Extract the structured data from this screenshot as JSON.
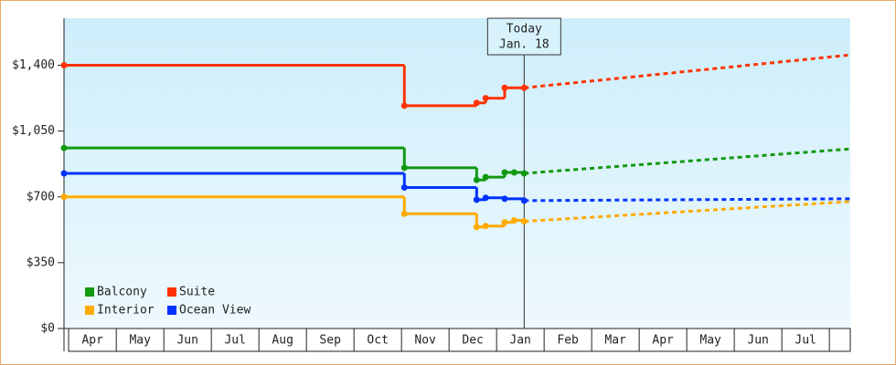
{
  "chart_data": {
    "type": "step-line",
    "ylim": [
      0,
      1650
    ],
    "yticks": [
      {
        "value": 0,
        "label": "$0"
      },
      {
        "value": 350,
        "label": "$350"
      },
      {
        "value": 700,
        "label": "$700"
      },
      {
        "value": 1050,
        "label": "$1,050"
      },
      {
        "value": 1400,
        "label": "$1,400"
      }
    ],
    "xlim": [
      -0.1,
      16.44
    ],
    "xticks": [
      {
        "value": 0.5,
        "label": "Apr"
      },
      {
        "value": 1.5,
        "label": "May"
      },
      {
        "value": 2.5,
        "label": "Jun"
      },
      {
        "value": 3.5,
        "label": "Jul"
      },
      {
        "value": 4.5,
        "label": "Aug"
      },
      {
        "value": 5.5,
        "label": "Sep"
      },
      {
        "value": 6.5,
        "label": "Oct"
      },
      {
        "value": 7.5,
        "label": "Nov"
      },
      {
        "value": 8.5,
        "label": "Dec"
      },
      {
        "value": 9.5,
        "label": "Jan"
      },
      {
        "value": 10.5,
        "label": "Feb"
      },
      {
        "value": 11.5,
        "label": "Mar"
      },
      {
        "value": 12.5,
        "label": "Apr"
      },
      {
        "value": 13.5,
        "label": "May"
      },
      {
        "value": 14.5,
        "label": "Jun"
      },
      {
        "value": 15.5,
        "label": "Jul"
      }
    ],
    "annotation": {
      "x": 9.58,
      "lines": [
        "Today",
        "Jan. 18"
      ]
    },
    "series": [
      {
        "name": "Balcony",
        "color": "#119911",
        "x": [
          -0.1,
          7.06,
          8.58,
          8.77,
          9.17,
          9.37,
          9.58
        ],
        "values": [
          960,
          855,
          790,
          805,
          830,
          830,
          825
        ],
        "forecast": {
          "x": [
            9.58,
            16.44
          ],
          "values": [
            825,
            955
          ]
        }
      },
      {
        "name": "Suite",
        "color": "#ff3300",
        "x": [
          -0.1,
          7.06,
          8.58,
          8.77,
          9.17,
          9.58
        ],
        "values": [
          1400,
          1185,
          1200,
          1225,
          1280,
          1280
        ],
        "forecast": {
          "x": [
            9.58,
            16.44
          ],
          "values": [
            1280,
            1455
          ]
        }
      },
      {
        "name": "Interior",
        "color": "#ffaa00",
        "x": [
          -0.1,
          7.06,
          8.58,
          8.77,
          9.17,
          9.37,
          9.58
        ],
        "values": [
          700,
          610,
          540,
          545,
          565,
          575,
          570
        ],
        "forecast": {
          "x": [
            9.58,
            16.44
          ],
          "values": [
            570,
            675
          ]
        }
      },
      {
        "name": "Ocean View",
        "color": "#0033ff",
        "x": [
          -0.1,
          7.06,
          8.58,
          8.77,
          9.17,
          9.58
        ],
        "values": [
          825,
          750,
          685,
          695,
          690,
          680
        ],
        "forecast": {
          "x": [
            9.58,
            16.44
          ],
          "values": [
            680,
            690
          ]
        }
      }
    ]
  }
}
